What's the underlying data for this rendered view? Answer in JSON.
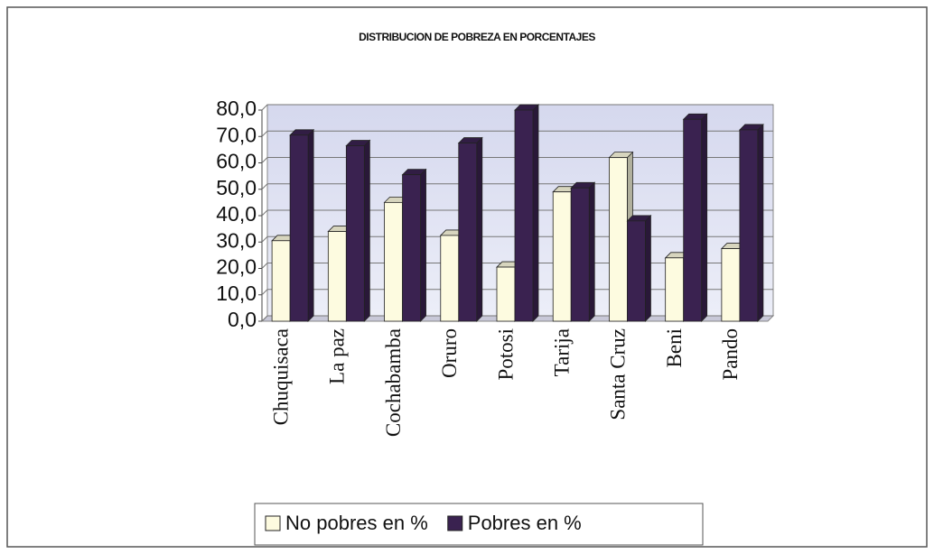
{
  "chart_data": {
    "type": "bar",
    "title": "DISTRIBUCION DE POBREZA EN PORCENTAJES",
    "categories": [
      "Chuquisaca",
      "La paz",
      "Cochabamba",
      "Oruro",
      "Potosi",
      "Tarija",
      "Santa Cruz",
      "Beni",
      "Pando"
    ],
    "series": [
      {
        "name": "No pobres en %",
        "color": "#fdfbe0",
        "values": [
          30.5,
          34,
          45,
          32.5,
          20.5,
          49,
          62,
          24,
          27.5
        ]
      },
      {
        "name": "Pobres en %",
        "color": "#3a2250",
        "values": [
          70.5,
          66.5,
          55.5,
          67.5,
          80,
          50.5,
          38,
          76.5,
          72.5
        ]
      }
    ],
    "ylim": [
      0,
      80
    ],
    "yticks": [
      {
        "value": 0,
        "label": "0,0"
      },
      {
        "value": 10,
        "label": "10,0"
      },
      {
        "value": 20,
        "label": "20,0"
      },
      {
        "value": 30,
        "label": "30,0"
      },
      {
        "value": 40,
        "label": "40,0"
      },
      {
        "value": 50,
        "label": "50,0"
      },
      {
        "value": 60,
        "label": "60,0"
      },
      {
        "value": 70,
        "label": "70,0"
      },
      {
        "value": 80,
        "label": "80,0"
      }
    ],
    "grid": true,
    "legend": "bottom"
  }
}
